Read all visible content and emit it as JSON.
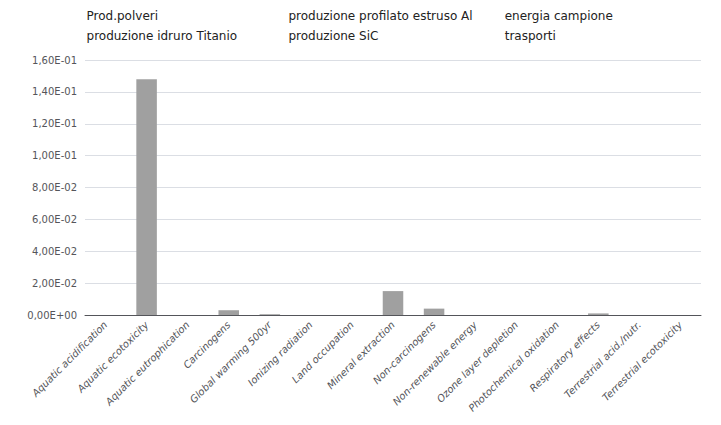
{
  "chart_data": {
    "type": "bar",
    "categories": [
      "Aquatic acidification",
      "Aquatic ecotoxicity",
      "Aquatic eutrophication",
      "Carcinogens",
      "Global warming 500yr",
      "Ionizing radiation",
      "Land occupation",
      "Mineral extraction",
      "Non-carcinogens",
      "Non-renewable energy",
      "Ozone layer depletion",
      "Photochemical oxidation",
      "Respiratory effects",
      "Terrestrial acid./nutr.",
      "Terrestrial ecotoxicity"
    ],
    "values": [
      0.0,
      0.148,
      0.0,
      0.003,
      0.0005,
      0.0,
      0.0,
      0.015,
      0.004,
      0.0,
      0.0,
      0.0,
      0.001,
      0.0,
      0.0
    ],
    "color": "#a0a0a0",
    "ylim": [
      0,
      0.16
    ],
    "yticks": [
      {
        "value": 0.0,
        "label": "0,00E+00"
      },
      {
        "value": 0.02,
        "label": "2,00E-02"
      },
      {
        "value": 0.04,
        "label": "4,00E-02"
      },
      {
        "value": 0.06,
        "label": "6,00E-02"
      },
      {
        "value": 0.08,
        "label": "8,00E-02"
      },
      {
        "value": 0.1,
        "label": "1,00E-01"
      },
      {
        "value": 0.12,
        "label": "1,20E-01"
      },
      {
        "value": 0.14,
        "label": "1,40E-01"
      },
      {
        "value": 0.16,
        "label": "1,60E-01"
      }
    ],
    "grid": true,
    "annotations": [
      "Prod.polveri",
      "produzione profilato estruso Al",
      "energia campione",
      "produzione idruro Titanio",
      "produzione SiC",
      "trasporti"
    ]
  }
}
